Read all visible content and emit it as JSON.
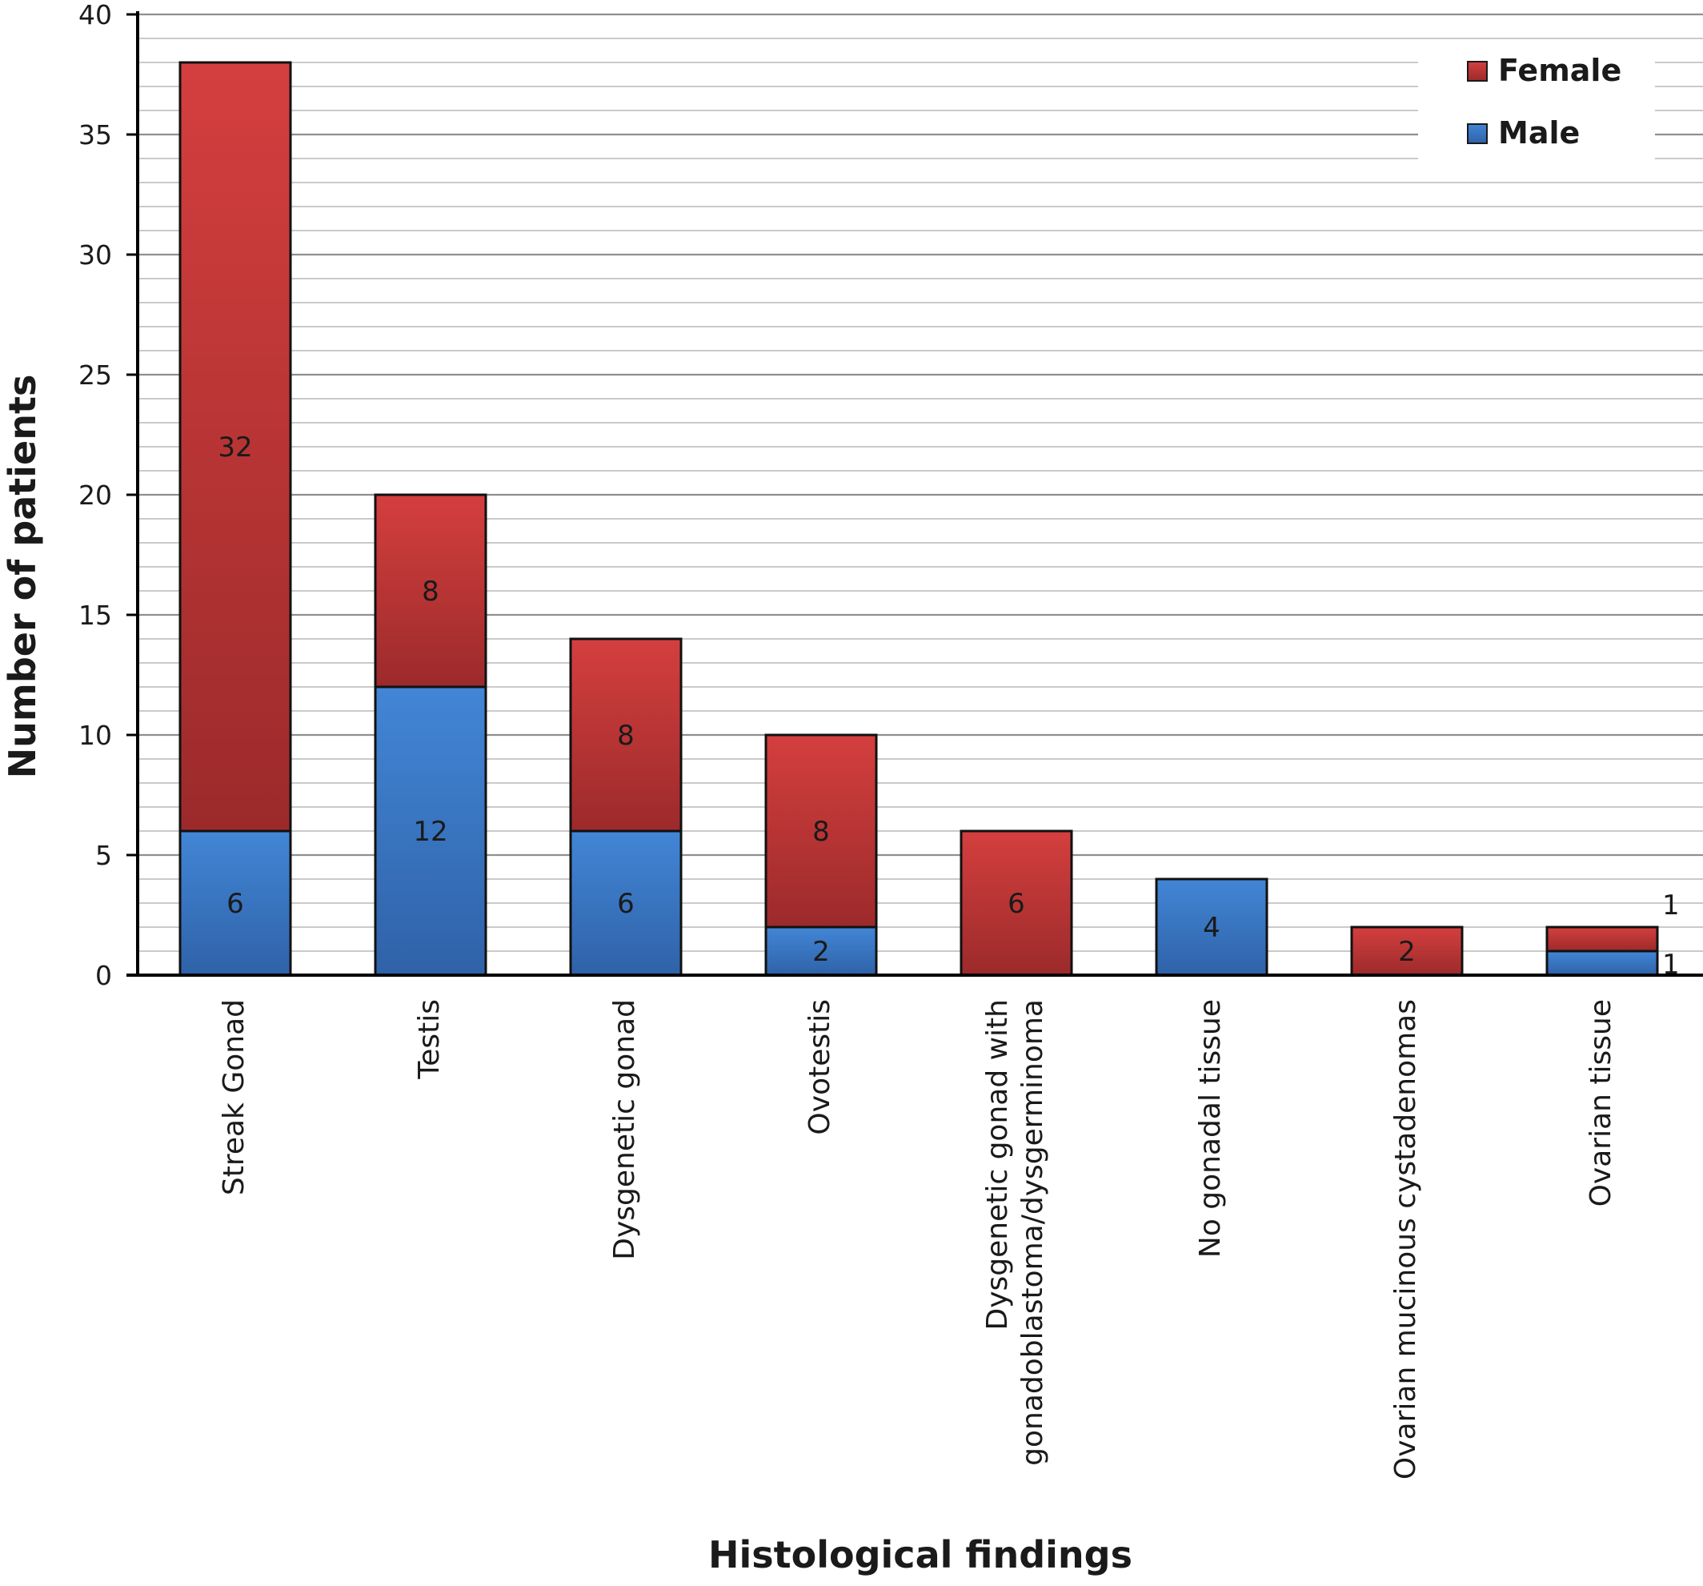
{
  "chart_data": {
    "type": "bar",
    "stacked": true,
    "title": "",
    "xlabel": "Histological findings",
    "ylabel": "Number of patients",
    "ylim": [
      0,
      40
    ],
    "y_ticks": [
      0,
      5,
      10,
      15,
      20,
      25,
      30,
      35,
      40
    ],
    "grid": "horizontal",
    "legend_position": "top-right",
    "categories": [
      [
        "Streak Gonad"
      ],
      [
        "Testis"
      ],
      [
        "Dysgenetic gonad"
      ],
      [
        "Ovotestis"
      ],
      [
        "Dysgenetic gonad with",
        "gonadoblastoma/dysgerminoma"
      ],
      [
        "No gonadal tissue"
      ],
      [
        "Ovarian mucinous cystadenomas"
      ],
      [
        "Ovarian tissue"
      ]
    ],
    "series": [
      {
        "name": "Male",
        "color": "#3a78c9",
        "values": [
          6,
          12,
          6,
          2,
          0,
          4,
          0,
          1
        ],
        "labels": [
          "6",
          "12",
          "6",
          "2",
          "",
          "4",
          "",
          "1"
        ]
      },
      {
        "name": "Female",
        "color": "#c0373a",
        "values": [
          32,
          8,
          8,
          8,
          6,
          0,
          2,
          1
        ],
        "labels": [
          "32",
          "8",
          "8",
          "8",
          "6",
          "",
          "2",
          "1"
        ]
      }
    ],
    "legend_order": [
      "Female",
      "Male"
    ]
  }
}
